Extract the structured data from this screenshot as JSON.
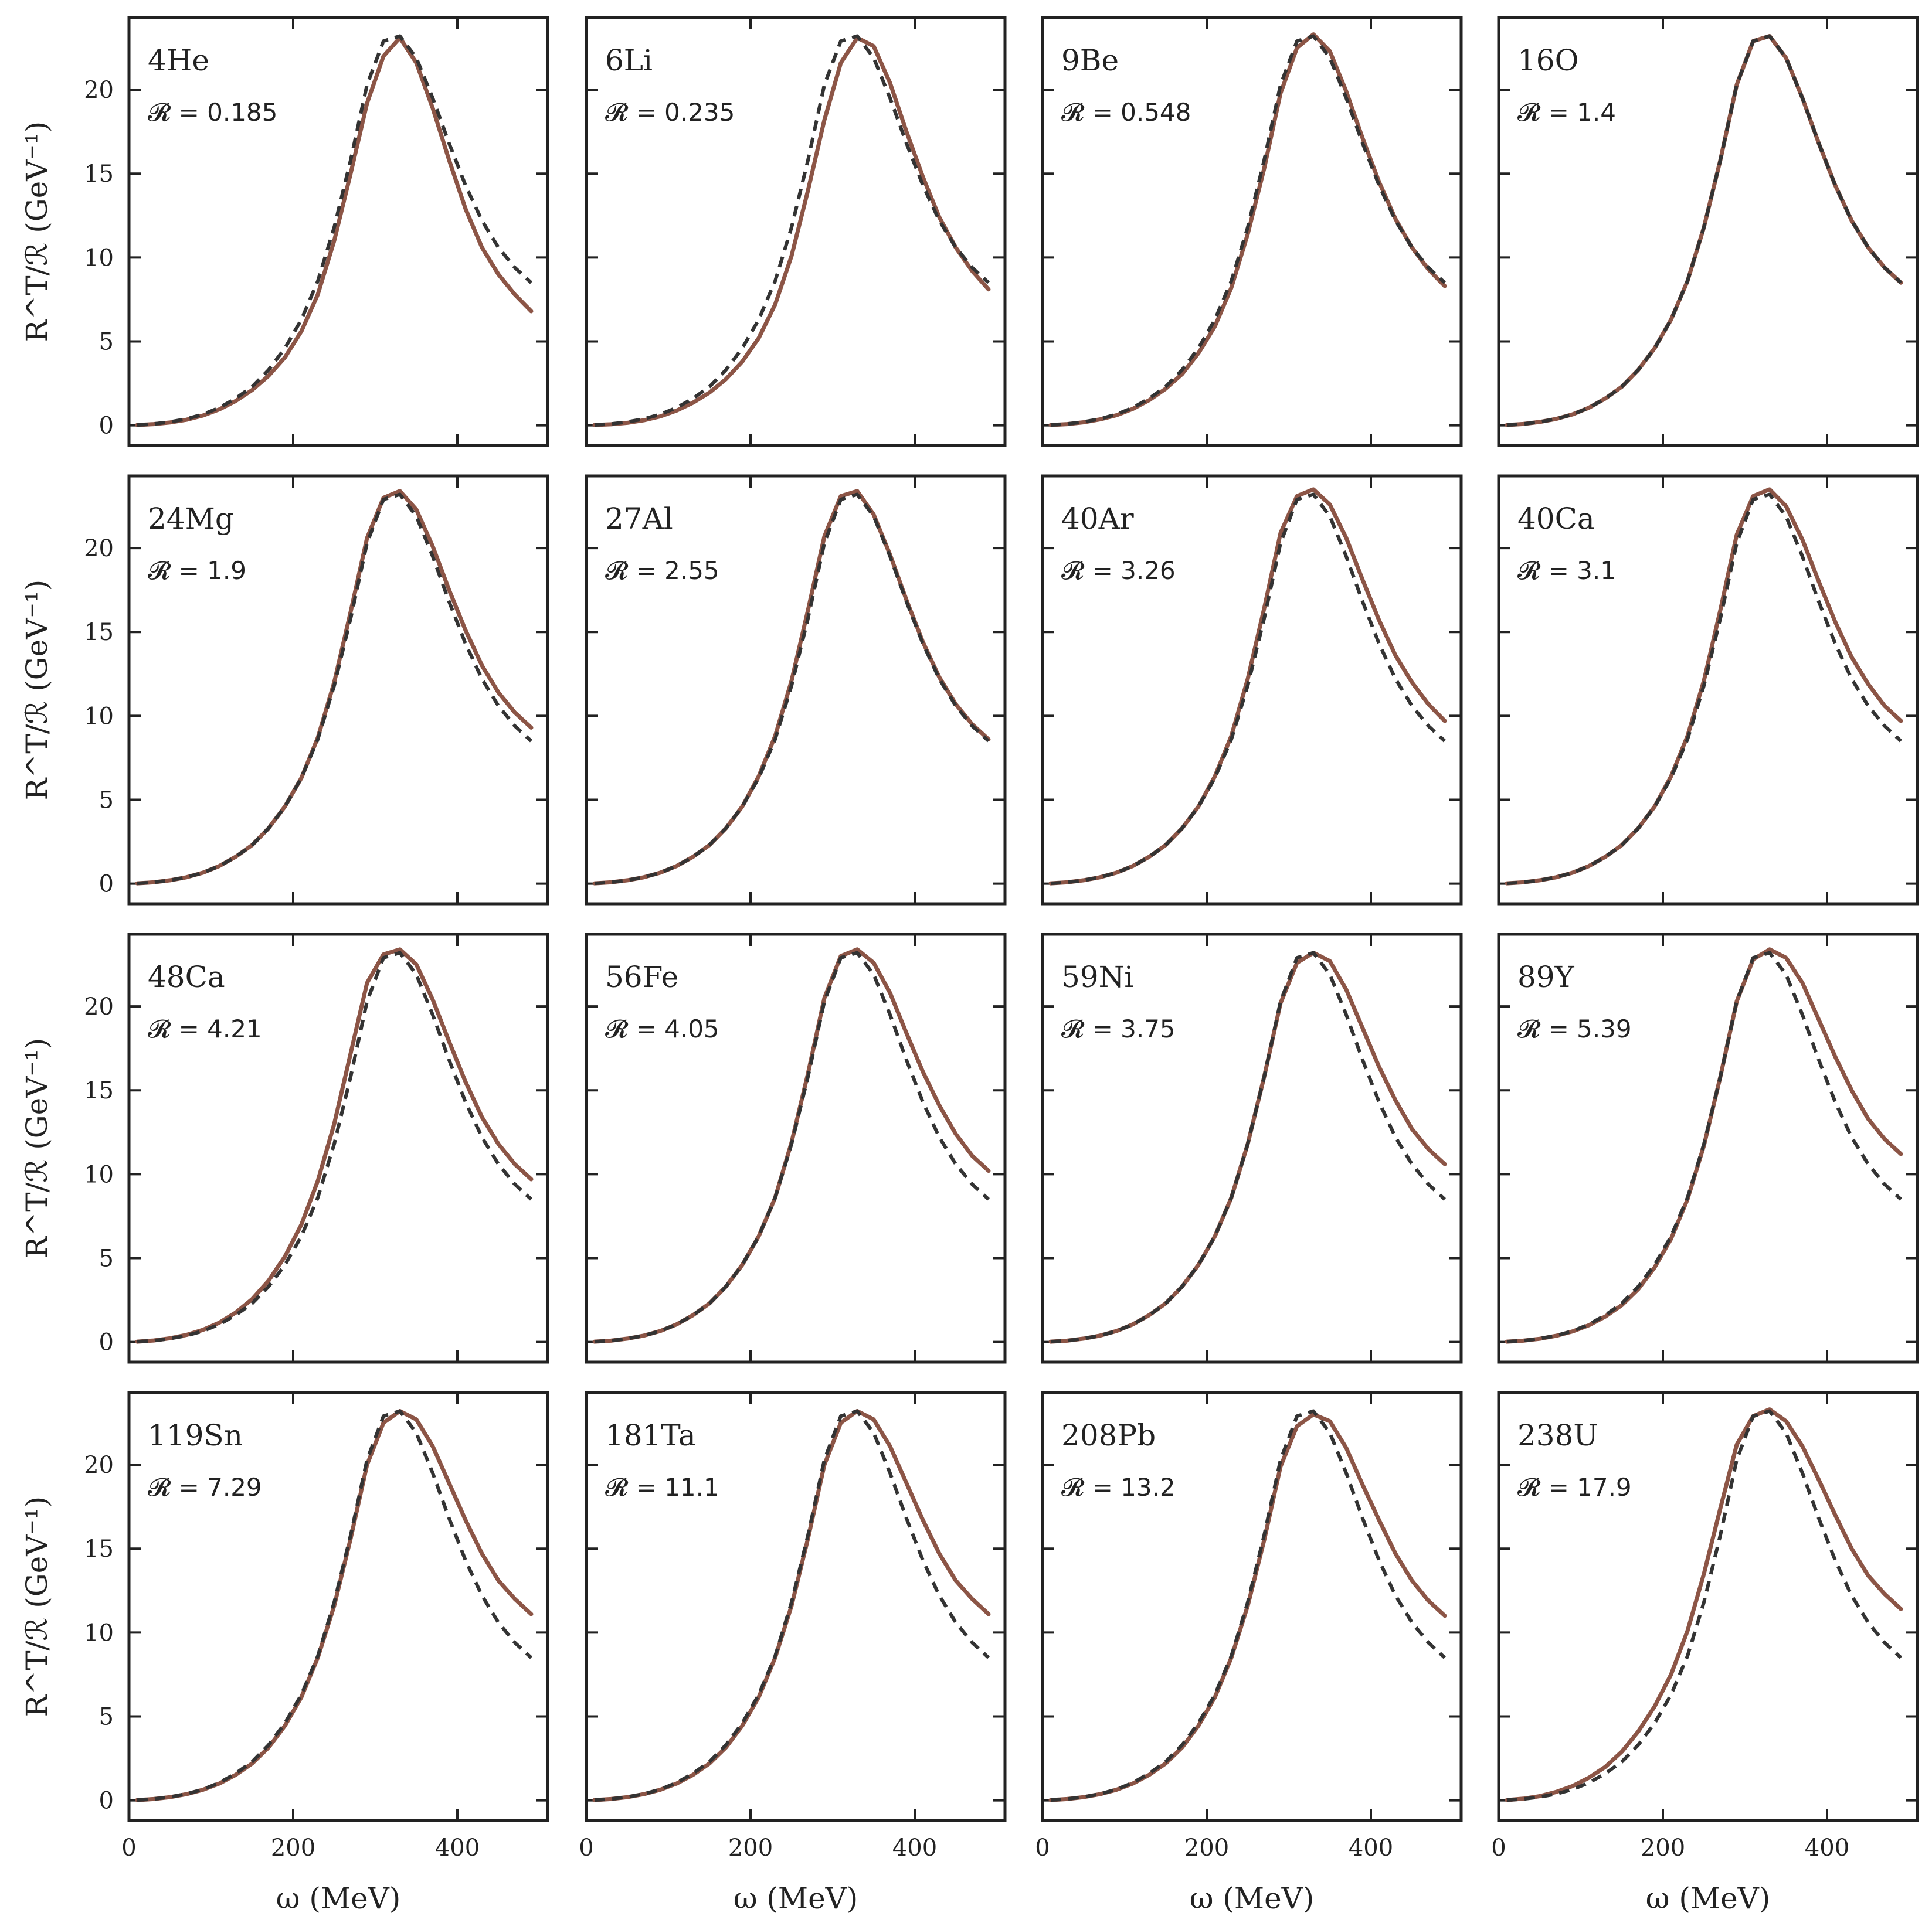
{
  "colors": {
    "solid": "#8c5546",
    "dashed": "#333333",
    "axes": "#222222"
  },
  "chart_data": {
    "type": "line",
    "layout": "4x4 grid of panels, shared x and y axes",
    "xlabel": "ω (MeV)",
    "ylabel": "R^T/ℛ (GeV⁻¹)",
    "xlim": [
      0,
      510
    ],
    "ylim": [
      -1.2,
      24.3
    ],
    "xticks": [
      0,
      200,
      400
    ],
    "yticks": [
      0,
      5,
      10,
      15,
      20
    ],
    "x": [
      10,
      30,
      50,
      70,
      90,
      110,
      130,
      150,
      170,
      190,
      210,
      230,
      250,
      270,
      290,
      310,
      330,
      350,
      370,
      390,
      410,
      430,
      450,
      470,
      490
    ],
    "reference_curve": [
      0.02,
      0.08,
      0.2,
      0.38,
      0.65,
      1.05,
      1.6,
      2.3,
      3.3,
      4.6,
      6.3,
      8.6,
      11.8,
      15.8,
      20.3,
      22.9,
      23.2,
      21.9,
      19.5,
      16.8,
      14.3,
      12.2,
      10.6,
      9.4,
      8.5
    ],
    "panels": [
      {
        "nucleus": "4He",
        "ratio": "𝓡 = 0.185",
        "solid": [
          0.02,
          0.07,
          0.17,
          0.33,
          0.58,
          0.95,
          1.45,
          2.1,
          2.95,
          4.05,
          5.6,
          7.8,
          11.0,
          15.0,
          19.2,
          22.0,
          23.1,
          21.6,
          18.9,
          15.8,
          12.9,
          10.6,
          9.0,
          7.8,
          6.8
        ]
      },
      {
        "nucleus": "6Li",
        "ratio": "𝓡 = 0.235",
        "solid": [
          0.02,
          0.06,
          0.15,
          0.3,
          0.53,
          0.88,
          1.35,
          1.95,
          2.75,
          3.8,
          5.2,
          7.2,
          10.1,
          14.0,
          18.2,
          21.6,
          23.1,
          22.6,
          20.4,
          17.5,
          14.8,
          12.4,
          10.6,
          9.2,
          8.1
        ]
      },
      {
        "nucleus": "9Be",
        "ratio": "𝓡 = 0.548",
        "solid": [
          0.02,
          0.07,
          0.18,
          0.35,
          0.6,
          0.98,
          1.5,
          2.18,
          3.05,
          4.3,
          5.9,
          8.2,
          11.4,
          15.3,
          19.8,
          22.5,
          23.3,
          22.3,
          19.9,
          17.1,
          14.5,
          12.3,
          10.6,
          9.3,
          8.3
        ]
      },
      {
        "nucleus": "16O",
        "ratio": "𝓡 = 1.4",
        "solid": [
          0.02,
          0.08,
          0.2,
          0.38,
          0.65,
          1.05,
          1.6,
          2.3,
          3.3,
          4.6,
          6.3,
          8.6,
          11.8,
          15.8,
          20.3,
          22.9,
          23.2,
          21.9,
          19.5,
          16.8,
          14.3,
          12.2,
          10.6,
          9.4,
          8.5
        ]
      },
      {
        "nucleus": "24Mg",
        "ratio": "𝓡 = 1.9",
        "solid": [
          0.02,
          0.08,
          0.2,
          0.38,
          0.65,
          1.05,
          1.6,
          2.3,
          3.3,
          4.6,
          6.3,
          8.7,
          12.0,
          16.2,
          20.6,
          23.0,
          23.4,
          22.3,
          20.1,
          17.5,
          15.1,
          13.0,
          11.4,
          10.2,
          9.3
        ]
      },
      {
        "nucleus": "27Al",
        "ratio": "𝓡 = 2.55",
        "solid": [
          0.02,
          0.08,
          0.2,
          0.38,
          0.65,
          1.05,
          1.6,
          2.3,
          3.3,
          4.6,
          6.4,
          8.8,
          12.1,
          16.3,
          20.7,
          23.1,
          23.4,
          22.0,
          19.6,
          16.9,
          14.4,
          12.3,
          10.7,
          9.5,
          8.6
        ]
      },
      {
        "nucleus": "40Ar",
        "ratio": "𝓡 = 3.26",
        "solid": [
          0.02,
          0.08,
          0.2,
          0.38,
          0.65,
          1.05,
          1.6,
          2.3,
          3.3,
          4.6,
          6.4,
          8.8,
          12.2,
          16.4,
          20.9,
          23.1,
          23.5,
          22.6,
          20.6,
          18.1,
          15.7,
          13.6,
          12.0,
          10.7,
          9.7
        ]
      },
      {
        "nucleus": "40Ca",
        "ratio": "𝓡 = 3.1",
        "solid": [
          0.02,
          0.08,
          0.2,
          0.38,
          0.65,
          1.05,
          1.6,
          2.3,
          3.3,
          4.6,
          6.4,
          8.8,
          12.1,
          16.3,
          20.8,
          23.1,
          23.5,
          22.5,
          20.5,
          18.0,
          15.6,
          13.5,
          11.9,
          10.6,
          9.7
        ]
      },
      {
        "nucleus": "48Ca",
        "ratio": "𝓡 = 4.21",
        "solid": [
          0.02,
          0.09,
          0.22,
          0.42,
          0.72,
          1.15,
          1.75,
          2.55,
          3.65,
          5.1,
          7.0,
          9.6,
          13.0,
          17.2,
          21.4,
          23.1,
          23.4,
          22.5,
          20.4,
          17.9,
          15.5,
          13.4,
          11.8,
          10.6,
          9.7
        ]
      },
      {
        "nucleus": "56Fe",
        "ratio": "𝓡 = 4.05",
        "solid": [
          0.02,
          0.08,
          0.2,
          0.38,
          0.65,
          1.05,
          1.6,
          2.3,
          3.3,
          4.6,
          6.3,
          8.6,
          11.9,
          16.0,
          20.5,
          23.0,
          23.4,
          22.6,
          20.8,
          18.4,
          16.1,
          14.1,
          12.4,
          11.1,
          10.2
        ]
      },
      {
        "nucleus": "59Ni",
        "ratio": "𝓡 = 3.75",
        "solid": [
          0.02,
          0.08,
          0.2,
          0.38,
          0.65,
          1.05,
          1.6,
          2.3,
          3.3,
          4.6,
          6.3,
          8.6,
          11.8,
          15.8,
          20.2,
          22.6,
          23.2,
          22.7,
          21.0,
          18.7,
          16.4,
          14.4,
          12.7,
          11.5,
          10.6
        ]
      },
      {
        "nucleus": "89Y",
        "ratio": "𝓡 = 5.39",
        "solid": [
          0.02,
          0.08,
          0.19,
          0.37,
          0.63,
          1.0,
          1.52,
          2.2,
          3.15,
          4.45,
          6.15,
          8.5,
          11.7,
          15.8,
          20.3,
          22.8,
          23.4,
          22.9,
          21.4,
          19.2,
          17.0,
          15.0,
          13.3,
          12.1,
          11.2
        ]
      },
      {
        "nucleus": "119Sn",
        "ratio": "𝓡 = 7.29",
        "solid": [
          0.02,
          0.08,
          0.19,
          0.37,
          0.63,
          1.0,
          1.52,
          2.2,
          3.15,
          4.45,
          6.15,
          8.5,
          11.6,
          15.6,
          20.0,
          22.5,
          23.2,
          22.7,
          21.1,
          18.9,
          16.7,
          14.7,
          13.1,
          12.0,
          11.1
        ]
      },
      {
        "nucleus": "181Ta",
        "ratio": "𝓡 = 11.1",
        "solid": [
          0.02,
          0.08,
          0.19,
          0.37,
          0.63,
          1.0,
          1.52,
          2.2,
          3.15,
          4.45,
          6.15,
          8.5,
          11.6,
          15.6,
          20.0,
          22.5,
          23.2,
          22.7,
          21.1,
          18.9,
          16.7,
          14.7,
          13.1,
          12.0,
          11.1
        ]
      },
      {
        "nucleus": "208Pb",
        "ratio": "𝓡 = 13.2",
        "solid": [
          0.02,
          0.08,
          0.19,
          0.37,
          0.63,
          1.0,
          1.52,
          2.2,
          3.15,
          4.45,
          6.15,
          8.5,
          11.6,
          15.5,
          19.9,
          22.3,
          23.0,
          22.6,
          21.0,
          18.8,
          16.7,
          14.7,
          13.1,
          11.9,
          11.0
        ]
      },
      {
        "nucleus": "238U",
        "ratio": "𝓡 = 17.9",
        "solid": [
          0.02,
          0.1,
          0.25,
          0.5,
          0.85,
          1.35,
          2.0,
          2.9,
          4.1,
          5.6,
          7.5,
          10.1,
          13.5,
          17.4,
          21.2,
          22.9,
          23.3,
          22.6,
          21.1,
          19.1,
          17.0,
          15.0,
          13.4,
          12.3,
          11.4
        ]
      }
    ]
  }
}
